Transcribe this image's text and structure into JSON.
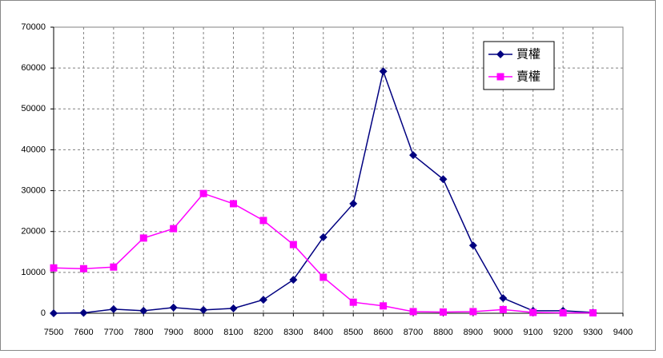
{
  "chart_data": {
    "type": "line",
    "x": [
      7500,
      7600,
      7700,
      7800,
      7900,
      8000,
      8100,
      8200,
      8300,
      8400,
      8500,
      8600,
      8700,
      8800,
      8900,
      9000,
      9100,
      9200,
      9300
    ],
    "series": [
      {
        "name": "買權",
        "color": "#000080",
        "marker": "diamond",
        "values": [
          0,
          100,
          1000,
          600,
          1400,
          800,
          1200,
          3300,
          8200,
          18600,
          26800,
          59200,
          38700,
          32800,
          16600,
          3700,
          600,
          600,
          200
        ]
      },
      {
        "name": "賣權",
        "color": "#ff00ff",
        "marker": "square",
        "values": [
          11100,
          10900,
          11300,
          18400,
          20700,
          29300,
          26800,
          22700,
          16800,
          8800,
          2700,
          1800,
          400,
          300,
          400,
          900,
          200,
          100,
          100
        ]
      }
    ],
    "xlim": [
      7500,
      9400
    ],
    "xticks": [
      7500,
      7600,
      7700,
      7800,
      7900,
      8000,
      8100,
      8200,
      8300,
      8400,
      8500,
      8600,
      8700,
      8800,
      8900,
      9000,
      9100,
      9200,
      9300,
      9400
    ],
    "ylim": [
      0,
      70000
    ],
    "yticks": [
      0,
      10000,
      20000,
      30000,
      40000,
      50000,
      60000,
      70000
    ],
    "grid": true,
    "legend": "top-right"
  }
}
